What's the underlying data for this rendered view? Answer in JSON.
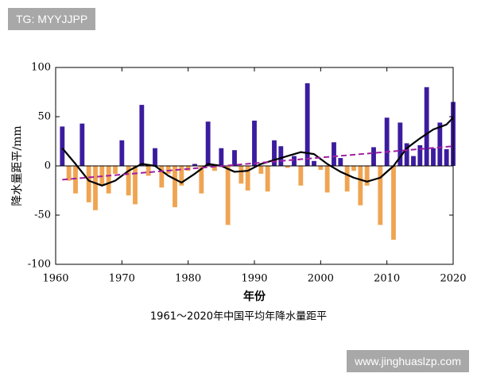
{
  "watermarks": {
    "top": "TG: MYYJJPP",
    "bottom": "www.jinghuaslzp.com"
  },
  "chart_data": {
    "type": "bar",
    "title": "1961～2020年中国平均年降水量距平",
    "x_label": "年份",
    "y_label": "降水量距平/mm",
    "x": [
      1961,
      1962,
      1963,
      1964,
      1965,
      1966,
      1967,
      1968,
      1969,
      1970,
      1971,
      1972,
      1973,
      1974,
      1975,
      1976,
      1977,
      1978,
      1979,
      1980,
      1981,
      1982,
      1983,
      1984,
      1985,
      1986,
      1987,
      1988,
      1989,
      1990,
      1991,
      1992,
      1993,
      1994,
      1995,
      1996,
      1997,
      1998,
      1999,
      2000,
      2001,
      2002,
      2003,
      2004,
      2005,
      2006,
      2007,
      2008,
      2009,
      2010,
      2011,
      2012,
      2013,
      2014,
      2015,
      2016,
      2017,
      2018,
      2019,
      2020
    ],
    "values": [
      40,
      -15,
      -28,
      43,
      -37,
      -45,
      -20,
      -28,
      -8,
      26,
      -30,
      -39,
      62,
      -10,
      18,
      -22,
      -8,
      -42,
      -20,
      -5,
      2,
      -28,
      45,
      -5,
      18,
      -60,
      16,
      -18,
      -25,
      46,
      -8,
      -26,
      26,
      20,
      -2,
      10,
      -20,
      84,
      5,
      -4,
      -27,
      24,
      8,
      -26,
      -5,
      -40,
      -20,
      19,
      -60,
      49,
      -75,
      44,
      23,
      10,
      21,
      80,
      18,
      44,
      17,
      65
    ],
    "positive_color": "#3b1c9e",
    "negative_color": "#f0a452",
    "lines": [
      {
        "color": "#000000",
        "dashed": false,
        "x": [
          1961,
          1963,
          1965,
          1967,
          1969,
          1971,
          1973,
          1975,
          1977,
          1979,
          1981,
          1983,
          1985,
          1987,
          1989,
          1991,
          1993,
          1995,
          1997,
          1999,
          2001,
          2003,
          2005,
          2007,
          2009,
          2011,
          2013,
          2015,
          2017,
          2019,
          2020
        ],
        "values": [
          18,
          2,
          -15,
          -20,
          -15,
          -5,
          2,
          0,
          -10,
          -17,
          -8,
          2,
          0,
          -6,
          -5,
          2,
          6,
          10,
          14,
          12,
          2,
          -6,
          -12,
          -16,
          -12,
          0,
          18,
          28,
          37,
          42,
          49
        ]
      },
      {
        "color": "#a020a0",
        "dashed": true,
        "x": [
          1961,
          2020
        ],
        "values": [
          -14,
          20
        ]
      }
    ],
    "xlim": [
      1960,
      2020
    ],
    "xticks": [
      1960,
      1970,
      1980,
      1990,
      2000,
      2010,
      2020
    ],
    "ylim": [
      -100,
      100
    ],
    "yticks": [
      -100,
      -50,
      0,
      50,
      100
    ]
  }
}
